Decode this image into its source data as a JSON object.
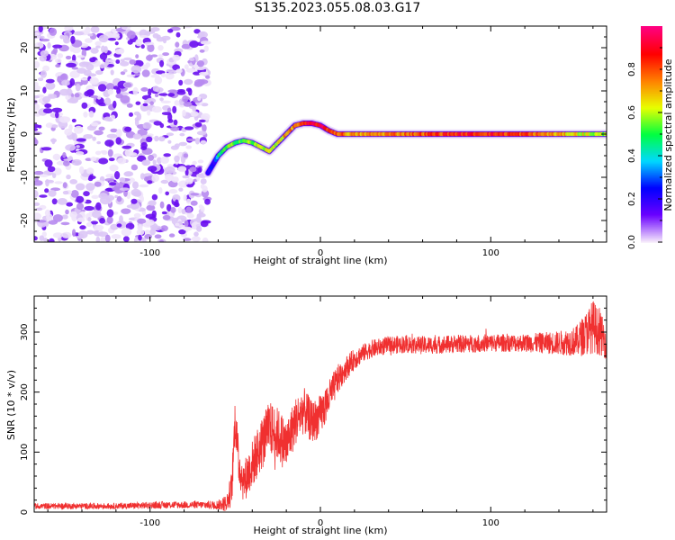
{
  "page_title": "S135.2023.055.08.03.G17",
  "chart_data": [
    {
      "type": "heatmap",
      "xlabel": "Height of straight line (km)",
      "ylabel": "Frequency (Hz)",
      "xlim": [
        -168,
        168
      ],
      "ylim": [
        -25,
        25
      ],
      "x_ticks": [
        -100,
        0,
        100
      ],
      "y_ticks": [
        -20,
        -10,
        0,
        10,
        20
      ],
      "grid": false,
      "colorbar": {
        "label": "Normalized spectral amplitude",
        "range": [
          0,
          1
        ],
        "ticks": [
          0.0,
          0.2,
          0.4,
          0.6,
          0.8
        ],
        "colormap": [
          "#f4e6fb",
          "#6a00ff",
          "#0000ff",
          "#00d8ff",
          "#00ff40",
          "#e8ff00",
          "#ff8000",
          "#ff0000",
          "#ff007f"
        ]
      },
      "noise_region": {
        "x_range": [
          -168,
          -66
        ],
        "y_range": [
          -25,
          25
        ]
      },
      "ridge": {
        "x": [
          -66,
          -63,
          -60,
          -55,
          -50,
          -45,
          -40,
          -35,
          -30,
          -25,
          -20,
          -15,
          -10,
          -5,
          0,
          5,
          10,
          20,
          40,
          60,
          80,
          100,
          120,
          140,
          160,
          168
        ],
        "y": [
          -9,
          -7,
          -5,
          -3,
          -2,
          -1.5,
          -2,
          -3,
          -4,
          -2,
          0,
          2,
          2.5,
          2.5,
          2,
          0.8,
          0,
          0,
          0,
          0,
          0,
          0,
          0,
          0,
          0,
          0
        ],
        "amplitude": [
          0.15,
          0.2,
          0.45,
          0.5,
          0.55,
          0.55,
          0.55,
          0.6,
          0.6,
          0.65,
          0.7,
          0.75,
          0.8,
          0.9,
          0.9,
          0.85,
          0.8,
          0.7,
          0.75,
          0.8,
          0.85,
          0.85,
          0.8,
          0.7,
          0.6,
          0.55
        ]
      }
    },
    {
      "type": "line",
      "xlabel": "Height of straight line (km)",
      "ylabel": "SNR (10 * v/v)",
      "xlim": [
        -168,
        168
      ],
      "ylim": [
        0,
        360
      ],
      "x_ticks": [
        -100,
        0,
        100
      ],
      "y_ticks": [
        0,
        100,
        200,
        300
      ],
      "grid": false,
      "series": [
        {
          "color": "#f03030",
          "x": [
            -168,
            -150,
            -120,
            -90,
            -70,
            -60,
            -55,
            -52,
            -50,
            -48,
            -45,
            -40,
            -35,
            -30,
            -25,
            -20,
            -15,
            -10,
            -5,
            0,
            5,
            10,
            15,
            20,
            25,
            30,
            40,
            50,
            60,
            80,
            100,
            120,
            140,
            150,
            155,
            160,
            165,
            168
          ],
          "y": [
            10,
            10,
            10,
            12,
            12,
            12,
            15,
            40,
            160,
            80,
            50,
            80,
            110,
            140,
            130,
            110,
            150,
            170,
            150,
            160,
            190,
            220,
            240,
            255,
            265,
            272,
            278,
            280,
            278,
            280,
            282,
            282,
            282,
            285,
            295,
            310,
            295,
            280
          ],
          "noise_amplitude": [
            5,
            5,
            5,
            6,
            6,
            8,
            15,
            30,
            40,
            35,
            35,
            40,
            45,
            45,
            45,
            45,
            40,
            40,
            35,
            35,
            30,
            25,
            20,
            18,
            15,
            15,
            15,
            15,
            15,
            15,
            15,
            15,
            20,
            25,
            35,
            45,
            35,
            25
          ]
        }
      ]
    }
  ]
}
